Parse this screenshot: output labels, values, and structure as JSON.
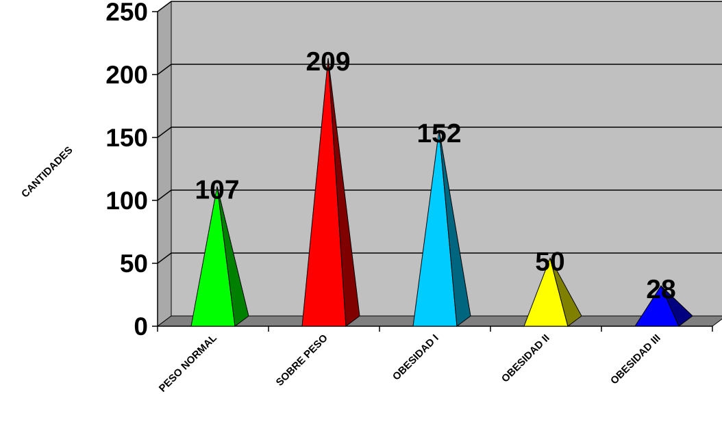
{
  "chart_data": {
    "type": "bar",
    "style": "3d-pyramid",
    "categories": [
      "PESO NORMAL",
      "SOBRE PESO",
      "OBESIDAD I",
      "OBESIDAD II",
      "OBESIDAD III"
    ],
    "values": [
      107,
      209,
      152,
      50,
      28
    ],
    "colors": [
      "#00ff00",
      "#ff0000",
      "#00ccff",
      "#ffff00",
      "#0000ff"
    ],
    "title": "",
    "xlabel": "",
    "ylabel": "CANTIDADES",
    "ylim": [
      0,
      250
    ],
    "yticks": [
      0,
      50,
      100,
      150,
      200,
      250
    ],
    "data_labels": [
      "107",
      "209",
      "152",
      "50",
      "28"
    ],
    "grid": true,
    "wall_color": "#c0c0c0",
    "floor_color": "#808080"
  }
}
